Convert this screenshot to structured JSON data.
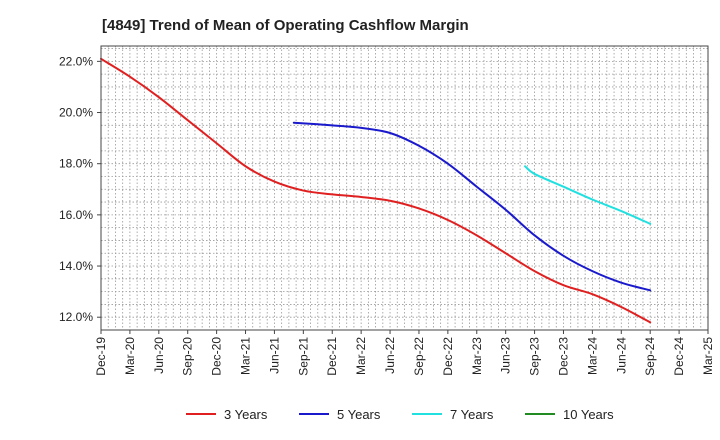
{
  "chart_data": {
    "type": "line",
    "title": "[4849]  Trend of Mean of Operating Cashflow Margin",
    "xlabel": "",
    "ylabel": "",
    "ylim": [
      11.5,
      22.6
    ],
    "y_ticks": [
      12.0,
      14.0,
      16.0,
      18.0,
      20.0,
      22.0
    ],
    "y_tick_labels": [
      "12.0%",
      "14.0%",
      "16.0%",
      "18.0%",
      "20.0%",
      "22.0%"
    ],
    "x_tick_labels": [
      "Dec-19",
      "Mar-20",
      "Jun-20",
      "Sep-20",
      "Dec-20",
      "Mar-21",
      "Jun-21",
      "Sep-21",
      "Dec-21",
      "Mar-22",
      "Jun-22",
      "Sep-22",
      "Dec-22",
      "Mar-23",
      "Jun-23",
      "Sep-23",
      "Dec-23",
      "Mar-24",
      "Jun-24",
      "Sep-24",
      "Dec-24",
      "Mar-25"
    ],
    "grid": true,
    "legend_position": "bottom",
    "series": [
      {
        "name": "3 Years",
        "color": "#e02020",
        "points": [
          [
            0,
            22.1
          ],
          [
            1,
            21.4
          ],
          [
            2,
            20.6
          ],
          [
            3,
            19.7
          ],
          [
            4,
            18.8
          ],
          [
            5,
            17.9
          ],
          [
            6,
            17.3
          ],
          [
            7,
            16.95
          ],
          [
            8,
            16.8
          ],
          [
            9,
            16.7
          ],
          [
            10,
            16.55
          ],
          [
            11,
            16.25
          ],
          [
            12,
            15.8
          ],
          [
            13,
            15.2
          ],
          [
            14,
            14.5
          ],
          [
            15,
            13.8
          ],
          [
            16,
            13.25
          ],
          [
            17,
            12.9
          ],
          [
            18,
            12.4
          ],
          [
            19,
            11.8
          ]
        ]
      },
      {
        "name": "5 Years",
        "color": "#1a1acc",
        "points": [
          [
            6.67,
            19.6
          ],
          [
            8,
            19.5
          ],
          [
            9,
            19.4
          ],
          [
            10,
            19.2
          ],
          [
            11,
            18.7
          ],
          [
            12,
            18.0
          ],
          [
            13,
            17.1
          ],
          [
            14,
            16.2
          ],
          [
            15,
            15.2
          ],
          [
            16,
            14.4
          ],
          [
            17,
            13.8
          ],
          [
            18,
            13.35
          ],
          [
            19,
            13.05
          ]
        ]
      },
      {
        "name": "7 Years",
        "color": "#22e0e0",
        "points": [
          [
            14.67,
            17.9
          ],
          [
            15,
            17.6
          ],
          [
            16,
            17.1
          ],
          [
            17,
            16.6
          ],
          [
            18,
            16.15
          ],
          [
            19,
            15.65
          ]
        ]
      },
      {
        "name": "10 Years",
        "color": "#228b22",
        "points": []
      }
    ]
  }
}
